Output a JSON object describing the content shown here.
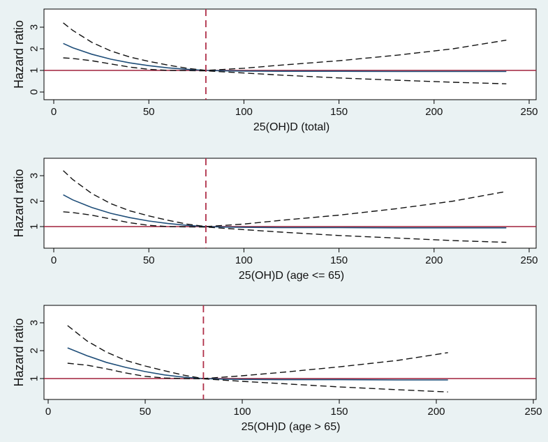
{
  "colors": {
    "background": "#eaf2f3",
    "plot_background": "#ffffff",
    "estimate_line": "#1f4e79",
    "reference_line": "#a0203c",
    "ci_line": "#111111",
    "cutoff_line": "#b0304a"
  },
  "chart_data": [
    {
      "type": "line",
      "xlabel": "25(OH)D (total)",
      "ylabel": "Hazard ratio",
      "xlim": [
        0,
        250
      ],
      "ylim": [
        -0.2,
        3.8
      ],
      "xticks": [
        0,
        50,
        100,
        150,
        200,
        250
      ],
      "yticks": [
        0,
        1,
        2,
        3
      ],
      "reference_y": 1,
      "cutoff_x": 80,
      "grid": false,
      "series": [
        {
          "role": "estimate",
          "style": "solid",
          "x": [
            5,
            10,
            20,
            30,
            40,
            50,
            60,
            70,
            80,
            90,
            100,
            120,
            150,
            180,
            210,
            238
          ],
          "y": [
            2.25,
            2.05,
            1.75,
            1.52,
            1.35,
            1.22,
            1.12,
            1.05,
            1.0,
            0.98,
            0.97,
            0.96,
            0.96,
            0.95,
            0.95,
            0.95
          ]
        },
        {
          "role": "ci_upper",
          "style": "dashed",
          "x": [
            5,
            10,
            20,
            30,
            40,
            50,
            60,
            70,
            80,
            100,
            120,
            150,
            180,
            210,
            238
          ],
          "y": [
            3.2,
            2.85,
            2.3,
            1.9,
            1.62,
            1.42,
            1.25,
            1.1,
            1.0,
            1.1,
            1.25,
            1.45,
            1.7,
            2.0,
            2.4
          ]
        },
        {
          "role": "ci_lower",
          "style": "dashed",
          "x": [
            5,
            10,
            20,
            30,
            40,
            50,
            60,
            70,
            80,
            100,
            120,
            150,
            180,
            210,
            238
          ],
          "y": [
            1.58,
            1.55,
            1.45,
            1.3,
            1.15,
            1.05,
            1.0,
            0.99,
            0.98,
            0.88,
            0.78,
            0.65,
            0.55,
            0.45,
            0.38
          ]
        }
      ]
    },
    {
      "type": "line",
      "xlabel": "25(OH)D (age <= 65)",
      "ylabel": "Hazard ratio",
      "xlim": [
        0,
        250
      ],
      "ylim": [
        0.2,
        3.8
      ],
      "xticks": [
        0,
        50,
        100,
        150,
        200,
        250
      ],
      "yticks": [
        1,
        2,
        3
      ],
      "reference_y": 1,
      "cutoff_x": 80,
      "grid": false,
      "series": [
        {
          "role": "estimate",
          "style": "solid",
          "x": [
            5,
            10,
            20,
            30,
            40,
            50,
            60,
            70,
            80,
            90,
            100,
            120,
            150,
            180,
            210,
            238
          ],
          "y": [
            2.25,
            2.05,
            1.75,
            1.52,
            1.35,
            1.22,
            1.12,
            1.05,
            1.0,
            0.98,
            0.97,
            0.96,
            0.96,
            0.95,
            0.95,
            0.95
          ]
        },
        {
          "role": "ci_upper",
          "style": "dashed",
          "x": [
            5,
            10,
            20,
            30,
            40,
            50,
            60,
            70,
            80,
            100,
            120,
            150,
            180,
            210,
            238
          ],
          "y": [
            3.2,
            2.85,
            2.3,
            1.9,
            1.62,
            1.42,
            1.25,
            1.1,
            1.0,
            1.1,
            1.25,
            1.45,
            1.7,
            2.0,
            2.38
          ]
        },
        {
          "role": "ci_lower",
          "style": "dashed",
          "x": [
            5,
            10,
            20,
            30,
            40,
            50,
            60,
            70,
            80,
            100,
            120,
            150,
            180,
            210,
            238
          ],
          "y": [
            1.58,
            1.55,
            1.45,
            1.3,
            1.15,
            1.05,
            1.0,
            0.99,
            0.98,
            0.88,
            0.78,
            0.65,
            0.55,
            0.45,
            0.38
          ]
        }
      ]
    },
    {
      "type": "line",
      "xlabel": "25(OH)D (age > 65)",
      "ylabel": "Hazard ratio",
      "xlim": [
        0,
        250
      ],
      "ylim": [
        0.3,
        3.5
      ],
      "xticks": [
        0,
        50,
        100,
        150,
        200,
        250
      ],
      "yticks": [
        1,
        2,
        3
      ],
      "reference_y": 1,
      "cutoff_x": 80,
      "grid": false,
      "series": [
        {
          "role": "estimate",
          "style": "solid",
          "x": [
            10,
            20,
            30,
            40,
            50,
            60,
            70,
            80,
            90,
            100,
            120,
            150,
            180,
            206
          ],
          "y": [
            2.1,
            1.82,
            1.58,
            1.4,
            1.25,
            1.13,
            1.05,
            1.0,
            0.98,
            0.97,
            0.96,
            0.96,
            0.95,
            0.95
          ]
        },
        {
          "role": "ci_upper",
          "style": "dashed",
          "x": [
            10,
            20,
            30,
            40,
            50,
            60,
            70,
            80,
            100,
            120,
            150,
            180,
            206
          ],
          "y": [
            2.9,
            2.35,
            1.95,
            1.65,
            1.45,
            1.28,
            1.12,
            1.0,
            1.1,
            1.22,
            1.42,
            1.65,
            1.93
          ]
        },
        {
          "role": "ci_lower",
          "style": "dashed",
          "x": [
            10,
            20,
            30,
            40,
            50,
            60,
            70,
            80,
            100,
            120,
            150,
            180,
            206
          ],
          "y": [
            1.55,
            1.48,
            1.35,
            1.2,
            1.08,
            1.02,
            1.0,
            0.99,
            0.9,
            0.82,
            0.7,
            0.6,
            0.52
          ]
        }
      ]
    }
  ]
}
